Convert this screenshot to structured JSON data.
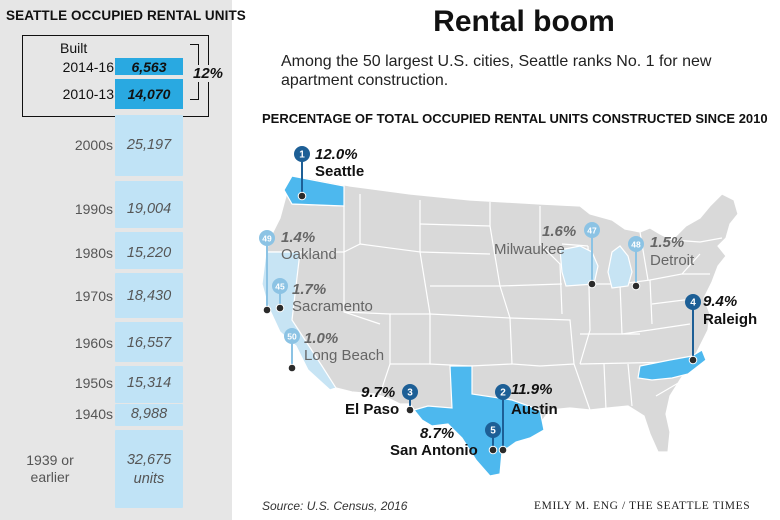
{
  "title": "Rental boom",
  "subtitle": "Among the 50 largest U.S. cities, Seattle ranks No. 1 for new apartment construction.",
  "map_heading": "PERCENTAGE OF TOTAL OCCUPIED RENTAL UNITS CONSTRUCTED SINCE 2010",
  "source": "Source: U.S. Census, 2016",
  "credit": "EMILY M. ENG / THE SEATTLE TIMES",
  "colors": {
    "recent_bar": "#29a9e1",
    "older_bar": "#c0e3f6",
    "top_city_fill": "#4db8ee",
    "other_city_fill": "#c7e4f4",
    "states_fill": "#d9d9d9",
    "marker_dark": "#1d5f96",
    "marker_light": "#8cc3e4",
    "left_panel": "#e6e6e6"
  },
  "chart_data": [
    {
      "type": "bar",
      "title": "SEATTLE OCCUPIED RENTAL UNITS",
      "built_label": "Built",
      "categories": [
        "2014-16",
        "2010-13",
        "2000s",
        "1990s",
        "1980s",
        "1970s",
        "1960s",
        "1950s",
        "1940s",
        "1939 or earlier"
      ],
      "values": [
        6563,
        14070,
        25197,
        19004,
        15220,
        18430,
        16557,
        15314,
        8988,
        32675
      ],
      "value_labels": [
        "6,563",
        "14,070",
        "25,197",
        "19,004",
        "15,220",
        "18,430",
        "16,557",
        "15,314",
        "8,988",
        "32,675"
      ],
      "unit_label": "units",
      "highlight": {
        "categories": [
          "2014-16",
          "2010-13"
        ],
        "label": "12%"
      }
    },
    {
      "type": "map",
      "cities": [
        {
          "rank": "1",
          "name": "Seattle",
          "pct": "12.0%",
          "group": "top"
        },
        {
          "rank": "2",
          "name": "Austin",
          "pct": "11.9%",
          "group": "top"
        },
        {
          "rank": "3",
          "name": "El Paso",
          "pct": "9.7%",
          "group": "top"
        },
        {
          "rank": "4",
          "name": "Raleigh",
          "pct": "9.4%",
          "group": "top"
        },
        {
          "rank": "5",
          "name": "San Antonio",
          "pct": "8.7%",
          "group": "top"
        },
        {
          "rank": "45",
          "name": "Sacramento",
          "pct": "1.7%",
          "group": "bottom"
        },
        {
          "rank": "47",
          "name": "Milwaukee",
          "pct": "1.6%",
          "group": "bottom"
        },
        {
          "rank": "48",
          "name": "Detroit",
          "pct": "1.5%",
          "group": "bottom"
        },
        {
          "rank": "49",
          "name": "Oakland",
          "pct": "1.4%",
          "group": "bottom"
        },
        {
          "rank": "50",
          "name": "Long Beach",
          "pct": "1.0%",
          "group": "bottom"
        }
      ]
    }
  ]
}
